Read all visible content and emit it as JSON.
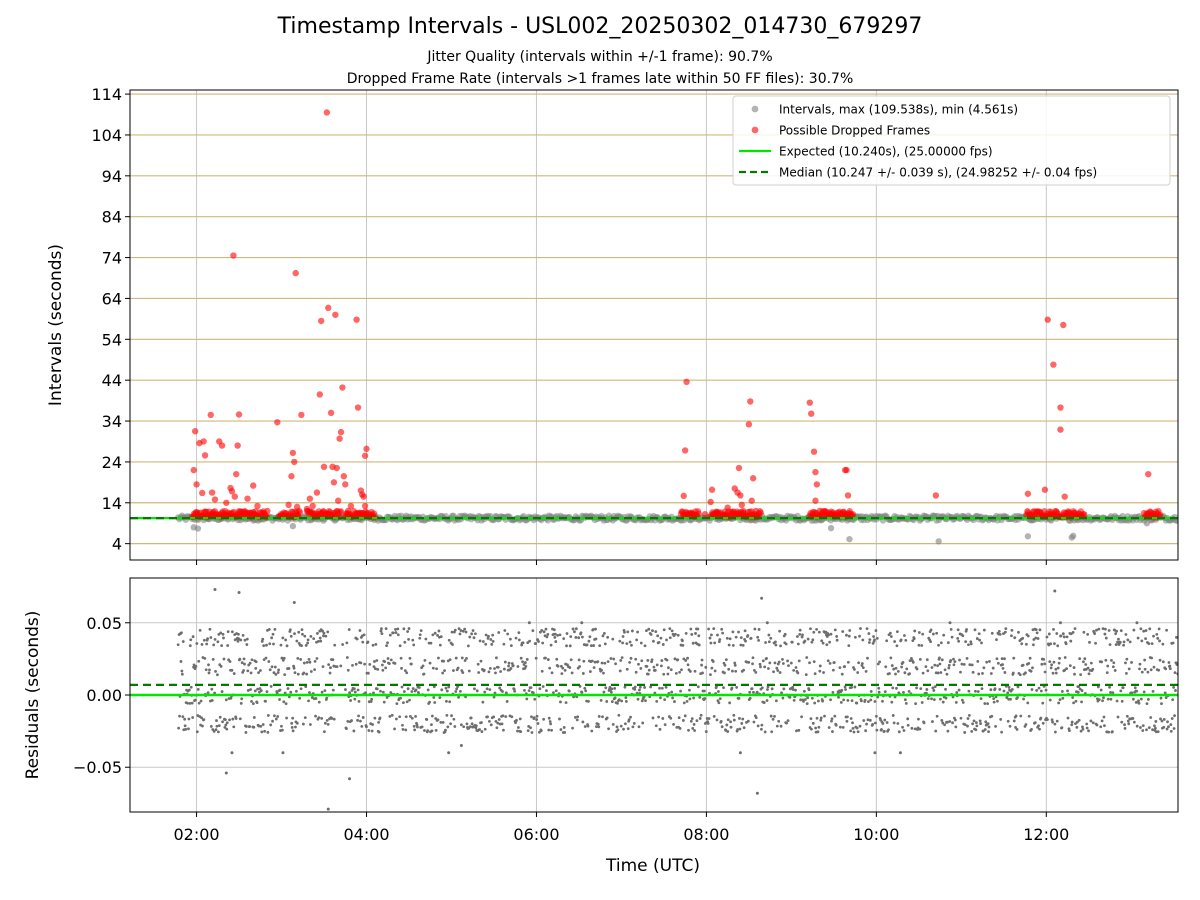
{
  "title": "Timestamp Intervals - USL002_20250302_014730_679297",
  "subtitle_1": "Jitter Quality (intervals within +/-1 frame): 90.7%",
  "subtitle_2": "Dropped Frame Rate (intervals >1 frames late within 50 FF files): 30.7%",
  "colors": {
    "intervals": "#808080",
    "dropped": "#ff0000",
    "expected": "#00e600",
    "median": "#007a00",
    "hgrid": "#d2b77a",
    "vgrid": "#c8c8c8",
    "residual": "#6e6e6e"
  },
  "chart_data": [
    {
      "type": "scatter",
      "ylabel": "Intervals (seconds)",
      "xlim": [
        "01:13",
        "13:33"
      ],
      "ylim": [
        0,
        115
      ],
      "yticks": [
        4,
        14,
        24,
        34,
        44,
        54,
        64,
        74,
        84,
        94,
        104,
        114
      ],
      "legend_position": "top-right",
      "grid": true,
      "series": [
        {
          "name": "Intervals, max (109.538s), min (4.561s)",
          "kind": "band",
          "values": [
            [
              "01:47",
              10.24
            ],
            [
              "13:33",
              10.24
            ]
          ],
          "outliers": [
            [
              "01:58",
              8.0
            ],
            [
              "02:01",
              7.7
            ],
            [
              "03:08",
              8.3
            ],
            [
              "09:28",
              7.8
            ],
            [
              "09:38",
              11.4
            ],
            [
              "09:41",
              5.1
            ],
            [
              "10:44",
              4.56
            ],
            [
              "11:47",
              5.8
            ],
            [
              "12:18",
              5.5
            ],
            [
              "12:19",
              5.9
            ],
            [
              "13:11",
              9.0
            ]
          ]
        },
        {
          "name": "Possible Dropped Frames",
          "values": [
            [
              "01:59",
              31.5
            ],
            [
              "02:00",
              18.5
            ],
            [
              "01:58",
              22.0
            ],
            [
              "02:02",
              28.6
            ],
            [
              "02:04",
              16.4
            ],
            [
              "02:05",
              29.0
            ],
            [
              "02:06",
              25.6
            ],
            [
              "02:07",
              11.8
            ],
            [
              "02:10",
              35.5
            ],
            [
              "02:11",
              16.5
            ],
            [
              "02:13",
              14.8
            ],
            [
              "02:16",
              29.0
            ],
            [
              "02:18",
              28.0
            ],
            [
              "02:21",
              14.0
            ],
            [
              "02:24",
              17.6
            ],
            [
              "02:25",
              16.8
            ],
            [
              "02:26",
              74.5
            ],
            [
              "02:27",
              15.5
            ],
            [
              "02:28",
              21.0
            ],
            [
              "02:29",
              28.0
            ],
            [
              "02:30",
              35.6
            ],
            [
              "02:32",
              11.8
            ],
            [
              "02:36",
              15.0
            ],
            [
              "02:40",
              18.2
            ],
            [
              "02:43",
              13.2
            ],
            [
              "02:50",
              12.0
            ],
            [
              "02:57",
              33.7
            ],
            [
              "03:05",
              13.5
            ],
            [
              "03:07",
              20.5
            ],
            [
              "03:08",
              26.2
            ],
            [
              "03:09",
              24.0
            ],
            [
              "03:10",
              70.2
            ],
            [
              "03:11",
              13.0
            ],
            [
              "03:14",
              35.5
            ],
            [
              "03:18",
              12.5
            ],
            [
              "03:20",
              15.0
            ],
            [
              "03:22",
              13.2
            ],
            [
              "03:25",
              16.5
            ],
            [
              "03:27",
              40.5
            ],
            [
              "03:28",
              58.5
            ],
            [
              "03:30",
              22.8
            ],
            [
              "03:32",
              109.5
            ],
            [
              "03:33",
              61.7
            ],
            [
              "03:35",
              36.0
            ],
            [
              "03:36",
              22.8
            ],
            [
              "03:37",
              19.0
            ],
            [
              "03:38",
              60.0
            ],
            [
              "03:39",
              22.5
            ],
            [
              "03:40",
              14.5
            ],
            [
              "03:41",
              29.7
            ],
            [
              "03:42",
              31.3
            ],
            [
              "03:43",
              42.2
            ],
            [
              "03:44",
              20.5
            ],
            [
              "03:45",
              18.5
            ],
            [
              "03:47",
              12.0
            ],
            [
              "03:49",
              13.2
            ],
            [
              "03:53",
              58.8
            ],
            [
              "03:54",
              37.3
            ],
            [
              "03:56",
              17.0
            ],
            [
              "03:57",
              16.0
            ],
            [
              "03:58",
              15.5
            ],
            [
              "03:59",
              13.2
            ],
            [
              "03:59",
              25.5
            ],
            [
              "04:00",
              27.2
            ],
            [
              "07:44",
              15.7
            ],
            [
              "07:45",
              26.8
            ],
            [
              "07:46",
              43.6
            ],
            [
              "07:59",
              11.2
            ],
            [
              "08:03",
              14.2
            ],
            [
              "08:04",
              17.2
            ],
            [
              "08:07",
              11.8
            ],
            [
              "08:13",
              11.0
            ],
            [
              "08:15",
              12.8
            ],
            [
              "08:20",
              17.5
            ],
            [
              "08:22",
              16.5
            ],
            [
              "08:23",
              22.5
            ],
            [
              "08:24",
              15.8
            ],
            [
              "08:25",
              13.5
            ],
            [
              "08:26",
              12.0
            ],
            [
              "08:30",
              33.2
            ],
            [
              "08:31",
              38.8
            ],
            [
              "08:32",
              14.5
            ],
            [
              "08:33",
              20.0
            ],
            [
              "08:35",
              12.0
            ],
            [
              "09:13",
              38.5
            ],
            [
              "09:14",
              35.8
            ],
            [
              "09:16",
              26.5
            ],
            [
              "09:17",
              21.5
            ],
            [
              "09:17",
              14.5
            ],
            [
              "09:18",
              18.5
            ],
            [
              "09:20",
              12.0
            ],
            [
              "09:25",
              10.8
            ],
            [
              "09:28",
              10.8
            ],
            [
              "09:30",
              11.2
            ],
            [
              "09:38",
              22.0
            ],
            [
              "09:39",
              22.0
            ],
            [
              "09:40",
              15.8
            ],
            [
              "10:42",
              15.8
            ],
            [
              "11:47",
              16.2
            ],
            [
              "11:59",
              17.2
            ],
            [
              "12:01",
              58.8
            ],
            [
              "12:05",
              47.8
            ],
            [
              "12:10",
              37.3
            ],
            [
              "12:10",
              31.9
            ],
            [
              "12:12",
              57.5
            ],
            [
              "12:13",
              15.5
            ],
            [
              "13:12",
              21.0
            ]
          ],
          "clusters": [
            [
              "01:57",
              "02:10"
            ],
            [
              "02:10",
              "02:50"
            ],
            [
              "02:58",
              "03:13"
            ],
            [
              "03:18",
              "03:42"
            ],
            [
              "03:45",
              "04:06"
            ],
            [
              "07:42",
              "07:55"
            ],
            [
              "08:03",
              "08:39"
            ],
            [
              "09:13",
              "09:44"
            ],
            [
              "11:46",
              "12:27"
            ],
            [
              "13:09",
              "13:21"
            ]
          ]
        },
        {
          "name": "Expected (10.240s), (25.00000 fps)",
          "kind": "hline",
          "y": 10.24
        },
        {
          "name": "Median (10.247 +/- 0.039 s), (24.98252 +/- 0.04 fps)",
          "kind": "hline-dashed",
          "y": 10.247
        }
      ]
    },
    {
      "type": "scatter",
      "xlabel": "Time (UTC)",
      "ylabel": "Residuals (seconds)",
      "xlim": [
        "01:13",
        "13:33"
      ],
      "xticks": [
        "02:00",
        "04:00",
        "06:00",
        "08:00",
        "10:00",
        "12:00"
      ],
      "ylim": [
        -0.081,
        0.081
      ],
      "yticks": [
        -0.05,
        0.0,
        0.05
      ],
      "ytick_labels": [
        "−0.05",
        "0.00",
        "0.05"
      ],
      "grid": true,
      "expected_residual": 0.0,
      "median_residual": 0.007,
      "residual_levels": [
        0.0,
        0.02,
        0.04,
        -0.02
      ],
      "outliers": [
        [
          "02:13",
          0.073
        ],
        [
          "02:30",
          0.071
        ],
        [
          "03:09",
          0.064
        ],
        [
          "02:21",
          -0.054
        ],
        [
          "03:33",
          -0.079
        ],
        [
          "03:48",
          -0.058
        ],
        [
          "08:39",
          0.067
        ],
        [
          "08:36",
          -0.068
        ],
        [
          "12:06",
          0.072
        ],
        [
          "02:25",
          -0.04
        ],
        [
          "03:01",
          -0.04
        ],
        [
          "04:58",
          -0.04
        ],
        [
          "05:07",
          -0.035
        ],
        [
          "08:24",
          -0.04
        ],
        [
          "09:59",
          -0.04
        ],
        [
          "10:17",
          -0.04
        ],
        [
          "05:55",
          0.05
        ],
        [
          "06:32",
          0.05
        ],
        [
          "08:43",
          0.05
        ],
        [
          "10:52",
          0.05
        ],
        [
          "12:10",
          0.05
        ],
        [
          "13:04",
          0.05
        ]
      ]
    }
  ]
}
